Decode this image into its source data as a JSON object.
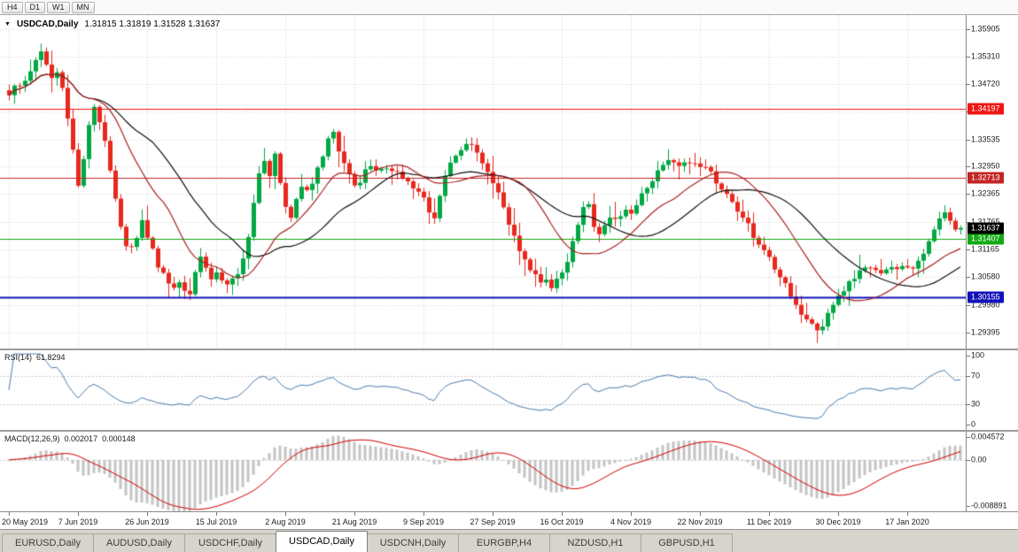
{
  "toolbar": {
    "timeframes": [
      "H4",
      "D1",
      "W1",
      "MN"
    ]
  },
  "chart": {
    "dropdown_icon": "▼",
    "symbol": "USDCAD,Daily",
    "ohlc": "1.31815 1.31819 1.31528 1.31637",
    "axis_labels": [
      "1.35905",
      "1.35310",
      "1.34720",
      "1.34130",
      "1.33535",
      "1.32950",
      "1.32365",
      "1.31765",
      "1.31165",
      "1.30580",
      "1.29980",
      "1.29395"
    ],
    "price_max": 1.362,
    "price_min": 1.2905,
    "levels": [
      {
        "value": "1.34197",
        "price": 1.34197,
        "color": "#f01414",
        "thickness": 1
      },
      {
        "value": "1.32713",
        "price": 1.32713,
        "color": "#c32525",
        "thickness": 1
      },
      {
        "value": "1.31407",
        "price": 1.31407,
        "color": "#12a912",
        "thickness": 1
      },
      {
        "value": "1.30155",
        "price": 1.30155,
        "color": "#1212bb",
        "thickness": 2
      }
    ],
    "bid_badge": {
      "value": "1.31637",
      "price": 1.31637,
      "bg": "#000000"
    },
    "dates": [
      "20 May 2019",
      "7 Jun 2019",
      "26 Jun 2019",
      "15 Jul 2019",
      "2 Aug 2019",
      "21 Aug 2019",
      "9 Sep 2019",
      "27 Sep 2019",
      "16 Oct 2019",
      "4 Nov 2019",
      "22 Nov 2019",
      "11 Dec 2019",
      "30 Dec 2019",
      "17 Jan 2020"
    ],
    "colors": {
      "up": "#00a843",
      "down": "#e8281e",
      "ma_fast": "#aa2222",
      "ma_slow": "#111111",
      "grid": "#d6d6d6"
    }
  },
  "chart_data": {
    "type": "candlestick",
    "symbol": "USDCAD",
    "timeframe": "Daily",
    "bars": 180,
    "open_display": 1.31815,
    "high_display": 1.31819,
    "low_display": 1.31528,
    "close_display": 1.31637,
    "last_close": 1.31637,
    "horizontal_levels": [
      1.34197,
      1.32713,
      1.31407,
      1.30155
    ],
    "date_tick_indices": [
      0,
      13,
      26,
      39,
      52,
      65,
      78,
      91,
      104,
      117,
      130,
      143,
      156,
      169
    ],
    "moving_averages": [
      {
        "period": 16,
        "color": "#aa2222"
      },
      {
        "period": 28,
        "color": "#111111"
      }
    ],
    "closes": [
      1.3455,
      1.3464,
      1.3472,
      1.3483,
      1.3498,
      1.352,
      1.3535,
      1.3508,
      1.3482,
      1.3502,
      1.3458,
      1.3398,
      1.3332,
      1.3258,
      1.331,
      1.3382,
      1.3418,
      1.3396,
      1.3348,
      1.329,
      1.3232,
      1.3172,
      1.313,
      1.3116,
      1.315,
      1.3176,
      1.315,
      1.3112,
      1.3082,
      1.3062,
      1.3048,
      1.3038,
      1.3052,
      1.3035,
      1.3028,
      1.3062,
      1.3096,
      1.3075,
      1.3052,
      1.307,
      1.3058,
      1.3045,
      1.3052,
      1.3068,
      1.3095,
      1.315,
      1.3222,
      1.3282,
      1.3312,
      1.3276,
      1.3315,
      1.3262,
      1.3208,
      1.3192,
      1.3228,
      1.3258,
      1.3242,
      1.3266,
      1.3292,
      1.3322,
      1.3348,
      1.3362,
      1.3335,
      1.3308,
      1.3282,
      1.325,
      1.3268,
      1.3292,
      1.3298,
      1.3282,
      1.3288,
      1.3292,
      1.3286,
      1.3278,
      1.327,
      1.3268,
      1.3256,
      1.324,
      1.3222,
      1.3202,
      1.3185,
      1.3225,
      1.3268,
      1.3302,
      1.3322,
      1.3334,
      1.3342,
      1.3336,
      1.3328,
      1.3308,
      1.3288,
      1.3262,
      1.3238,
      1.3205,
      1.3172,
      1.314,
      1.3115,
      1.3092,
      1.3075,
      1.3062,
      1.3052,
      1.3045,
      1.3042,
      1.3055,
      1.3068,
      1.3098,
      1.3135,
      1.3172,
      1.3205,
      1.3215,
      1.3172,
      1.3152,
      1.3175,
      1.319,
      1.318,
      1.3195,
      1.3205,
      1.3195,
      1.3215,
      1.3235,
      1.3255,
      1.327,
      1.3285,
      1.3295,
      1.3305,
      1.33,
      1.3295,
      1.3305,
      1.331,
      1.33,
      1.329,
      1.3296,
      1.328,
      1.3262,
      1.325,
      1.3235,
      1.322,
      1.3205,
      1.319,
      1.317,
      1.315,
      1.3135,
      1.312,
      1.31,
      1.308,
      1.3058,
      1.304,
      1.302,
      1.3,
      1.298,
      1.2965,
      1.2955,
      1.295,
      1.2958,
      1.2985,
      1.3,
      1.3012,
      1.3028,
      1.3042,
      1.3055,
      1.3068,
      1.3075,
      1.3082,
      1.3075,
      1.3068,
      1.3072,
      1.308,
      1.3076,
      1.3082,
      1.3076,
      1.3072,
      1.3086,
      1.3112,
      1.3142,
      1.3168,
      1.3186,
      1.3196,
      1.3176,
      1.3162,
      1.31637
    ]
  },
  "rsi": {
    "name": "RSI(14)",
    "value": "61.8294",
    "period": 14,
    "axis": [
      "100",
      "70",
      "30",
      "0"
    ],
    "upper": 70,
    "lower": 30,
    "line_color": "#4e7dad"
  },
  "macd": {
    "name": "MACD(12,26,9)",
    "main_value": "0.002017",
    "signal_value": "0.000148",
    "fast": 12,
    "slow": 26,
    "signal": 9,
    "axis_max": "0.004572",
    "axis_zero": "0.00",
    "axis_min": "-0.008891",
    "scale_max": 0.004572,
    "scale_min": -0.008891,
    "hist_color": "#c4c4c4",
    "signal_color": "#d40000"
  },
  "tabs": {
    "items": [
      "EURUSD,Daily",
      "AUDUSD,Daily",
      "USDCHF,Daily",
      "USDCAD,Daily",
      "USDCNH,Daily",
      "EURGBP,H4",
      "NZDUSD,H1",
      "GBPUSD,H1"
    ],
    "active": "USDCAD,Daily"
  }
}
